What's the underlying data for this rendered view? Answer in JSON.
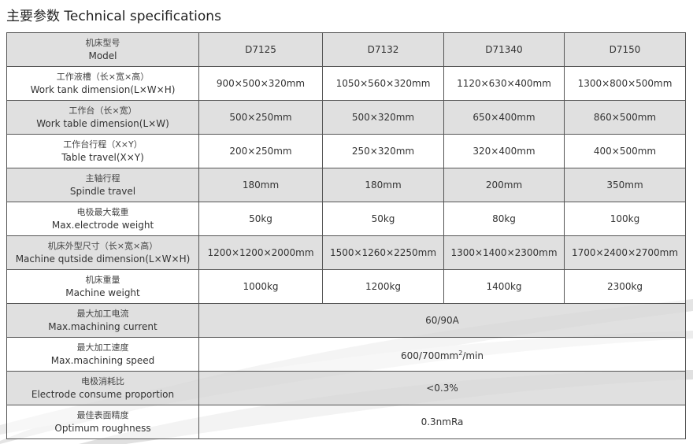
{
  "title": "主要参数 Technical specifications",
  "header": {
    "zh": "机床型号",
    "en": "Model",
    "models": [
      "D7125",
      "D7132",
      "D71340",
      "D7150"
    ]
  },
  "rows": [
    {
      "zh": "工作液槽（长×宽×高）",
      "en": "Work tank dimension(L×W×H)",
      "values": [
        "900×500×320mm",
        "1050×560×320mm",
        "1120×630×400mm",
        "1300×800×500mm"
      ]
    },
    {
      "zh": "工作台（长×宽）",
      "en": "Work table dimension(L×W)",
      "values": [
        "500×250mm",
        "500×320mm",
        "650×400mm",
        "860×500mm"
      ]
    },
    {
      "zh": "工作台行程（X×Y）",
      "en": "Table travel(X×Y)",
      "values": [
        "200×250mm",
        "250×320mm",
        "320×400mm",
        "400×500mm"
      ]
    },
    {
      "zh": "主轴行程",
      "en": "Spindle travel",
      "values": [
        "180mm",
        "180mm",
        "200mm",
        "350mm"
      ]
    },
    {
      "zh": "电极最大载重",
      "en": "Max.electrode weight",
      "values": [
        "50kg",
        "50kg",
        "80kg",
        "100kg"
      ]
    },
    {
      "zh": "机床外型尺寸（长×宽×高）",
      "en": "Machine qutside dimension(L×W×H)",
      "values": [
        "1200×1200×2000mm",
        "1500×1260×2250mm",
        "1300×1400×2300mm",
        "1700×2400×2700mm"
      ]
    },
    {
      "zh": "机床重量",
      "en": "Machine weight",
      "values": [
        "1000kg",
        "1200kg",
        "1400kg",
        "2300kg"
      ]
    }
  ],
  "shared_rows": [
    {
      "zh": "最大加工电流",
      "en": "Max.machining current",
      "value": "60/90A"
    },
    {
      "zh": "最大加工速度",
      "en": "Max.machining speed",
      "value": "600/700mm",
      "sup": "2",
      "suffix": "/min"
    },
    {
      "zh": "电极消耗比",
      "en": "Electrode consume proportion",
      "value": "<0.3%"
    },
    {
      "zh": "最佳表面精度",
      "en": "Optimum roughness",
      "value": "0.3nmRa"
    }
  ]
}
